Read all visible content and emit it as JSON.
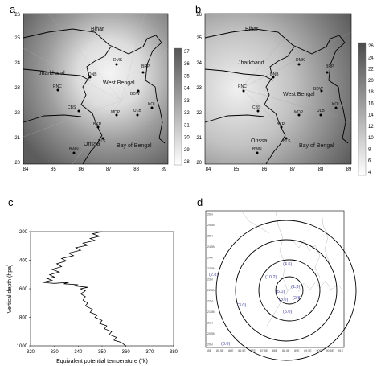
{
  "panels": {
    "a": {
      "label": "a",
      "colorbar": {
        "min": 28,
        "max": 37,
        "ticks": [
          28,
          29,
          30,
          31,
          32,
          33,
          34,
          35,
          36,
          37
        ]
      }
    },
    "b": {
      "label": "b",
      "colorbar": {
        "min": 4,
        "max": 26,
        "ticks": [
          4,
          6,
          8,
          10,
          12,
          14,
          16,
          18,
          20,
          22,
          24,
          26
        ]
      }
    },
    "c": {
      "label": "c"
    },
    "d": {
      "label": "d"
    }
  },
  "map": {
    "xticks": [
      "84",
      "85",
      "86",
      "87",
      "88",
      "89"
    ],
    "yticks": [
      "20",
      "21",
      "22",
      "23",
      "24",
      "25",
      "26"
    ],
    "regions": [
      "Bihar",
      "Jharkhand",
      "West Bengal",
      "Orissa",
      "Bay of Bengal"
    ],
    "stations": [
      "DMK",
      "BRP",
      "DNB",
      "RNC",
      "BDW",
      "CBS",
      "MDP",
      "ULB",
      "KOL",
      "BKR",
      "BLS",
      "BWN"
    ]
  },
  "ring_labels": [
    "(4.6)",
    "(10.2)",
    "(1.3)",
    "(5.0)",
    "(2.8)",
    "(3.0)",
    "(5.0)",
    "(3.0)",
    "(3.0)",
    "(2.8)"
  ],
  "d_axis": {
    "xticks": [
      "85E",
      "85.5E",
      "86E",
      "86.5E",
      "87E",
      "87.5E",
      "88E",
      "88.5E",
      "89E",
      "89.5E",
      "90E",
      "90.5E",
      "91E"
    ],
    "yticks": [
      "26N",
      "25.5N",
      "25N",
      "24.5N",
      "24N",
      "23.5N",
      "23N",
      "22.5N",
      "22N",
      "21.5N",
      "21N",
      "20.5N",
      "20N"
    ]
  },
  "chart_data": {
    "type": "line",
    "xlabel": "Equivalent potential temperature (°k)",
    "ylabel": "Vertical depth (hpa)",
    "xlim": [
      320,
      380
    ],
    "ylim": [
      1000,
      200
    ],
    "xticks": [
      320,
      330,
      340,
      350,
      360,
      370,
      380
    ],
    "yticks": [
      200,
      400,
      600,
      800,
      1000
    ],
    "series": [
      {
        "values": [
          [
            350,
            200
          ],
          [
            346,
            215
          ],
          [
            349,
            232
          ],
          [
            345,
            248
          ],
          [
            347,
            262
          ],
          [
            342,
            280
          ],
          [
            344,
            295
          ],
          [
            339,
            312
          ],
          [
            341,
            330
          ],
          [
            336,
            350
          ],
          [
            338,
            368
          ],
          [
            333,
            388
          ],
          [
            335,
            405
          ],
          [
            331,
            425
          ],
          [
            333,
            445
          ],
          [
            329,
            465
          ],
          [
            332,
            482
          ],
          [
            328,
            502
          ],
          [
            330,
            518
          ],
          [
            327,
            528
          ],
          [
            329,
            540
          ],
          [
            325,
            555
          ],
          [
            328,
            560
          ],
          [
            330,
            562
          ],
          [
            336,
            555
          ],
          [
            334,
            565
          ],
          [
            340,
            572
          ],
          [
            338,
            580
          ],
          [
            344,
            590
          ],
          [
            341,
            600
          ],
          [
            343,
            615
          ],
          [
            341,
            635
          ],
          [
            343,
            655
          ],
          [
            342,
            680
          ],
          [
            344,
            700
          ],
          [
            343,
            720
          ],
          [
            346,
            745
          ],
          [
            345,
            765
          ],
          [
            348,
            785
          ],
          [
            347,
            800
          ],
          [
            350,
            822
          ],
          [
            349,
            842
          ],
          [
            352,
            860
          ],
          [
            351,
            880
          ],
          [
            354,
            900
          ],
          [
            353,
            920
          ],
          [
            356,
            940
          ],
          [
            355,
            960
          ],
          [
            358,
            975
          ],
          [
            359,
            988
          ],
          [
            360,
            1000
          ]
        ]
      }
    ]
  }
}
